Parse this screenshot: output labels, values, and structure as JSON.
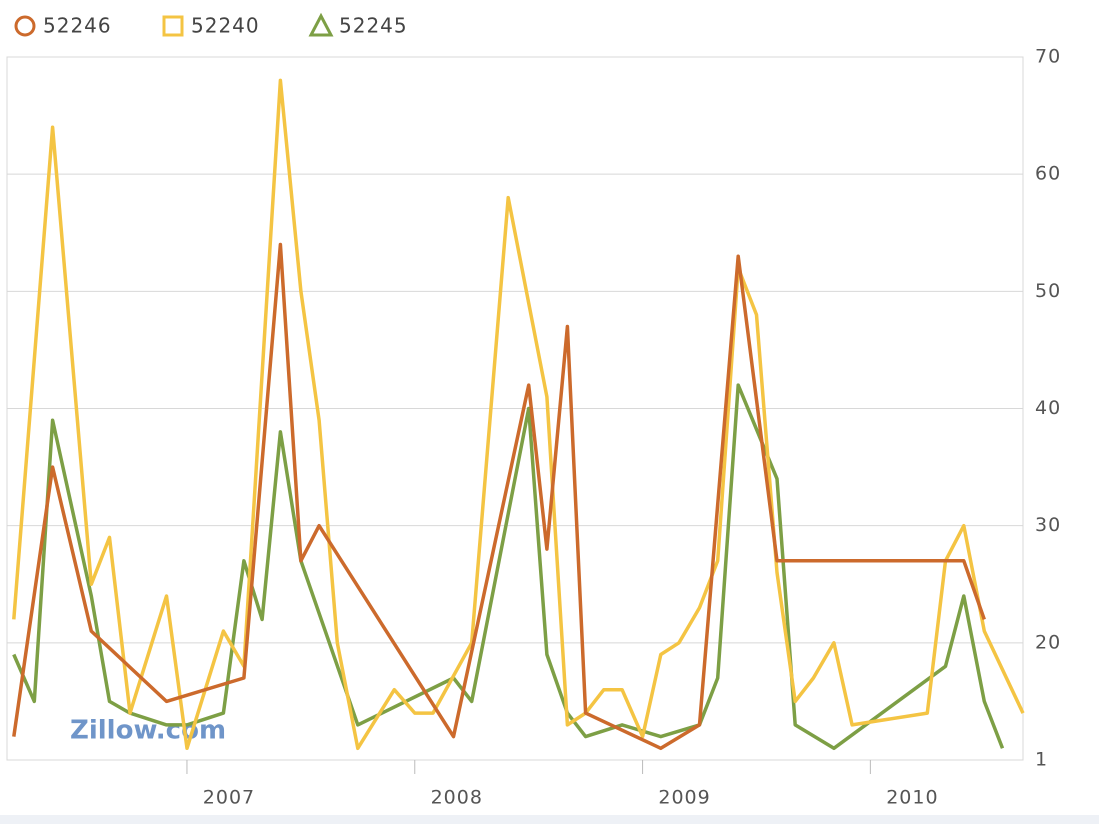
{
  "chart_data": {
    "type": "line",
    "watermark": "Zillow.com",
    "x_axis_position": "bottom",
    "y_axis_position": "right",
    "grid": true,
    "xlim": [
      2006.21,
      2010.67
    ],
    "xticks": [
      2007,
      2008,
      2009,
      2010
    ],
    "ylim": [
      10,
      70
    ],
    "yticks": [
      {
        "value": 10,
        "label": "1"
      },
      20,
      30,
      40,
      50,
      60,
      70
    ],
    "series": [
      {
        "name": "52246",
        "color": "#cc6a2c",
        "marker": "circle",
        "x": [
          2006.24,
          2006.41,
          2006.58,
          2006.91,
          2007.25,
          2007.41,
          2007.5,
          2007.58,
          2008.17,
          2008.5,
          2008.58,
          2008.67,
          2008.75,
          2009.08,
          2009.25,
          2009.42,
          2009.59,
          2010.41,
          2010.5
        ],
        "values": [
          12,
          35,
          21,
          15,
          17,
          54,
          27,
          30,
          12,
          42,
          28,
          47,
          14,
          11,
          13,
          53,
          27,
          27,
          22
        ]
      },
      {
        "name": "52240",
        "color": "#f4c443",
        "marker": "square",
        "x": [
          2006.24,
          2006.41,
          2006.58,
          2006.66,
          2006.75,
          2006.91,
          2007.0,
          2007.16,
          2007.25,
          2007.41,
          2007.5,
          2007.58,
          2007.66,
          2007.75,
          2007.91,
          2008.0,
          2008.08,
          2008.25,
          2008.41,
          2008.58,
          2008.67,
          2008.75,
          2008.83,
          2008.91,
          2009.0,
          2009.08,
          2009.16,
          2009.25,
          2009.33,
          2009.42,
          2009.5,
          2009.59,
          2009.67,
          2009.75,
          2009.84,
          2009.92,
          2010.25,
          2010.33,
          2010.41,
          2010.5,
          2010.67
        ],
        "values": [
          22,
          64,
          25,
          29,
          14,
          24,
          11,
          21,
          18,
          68,
          50,
          39,
          20,
          11,
          16,
          14,
          14,
          20,
          58,
          41,
          13,
          14,
          16,
          16,
          12,
          19,
          20,
          23,
          27,
          52,
          48,
          26,
          15,
          17,
          20,
          13,
          14,
          27,
          30,
          21,
          14
        ]
      },
      {
        "name": "52245",
        "color": "#7d9f45",
        "marker": "triangle",
        "x": [
          2006.24,
          2006.33,
          2006.41,
          2006.58,
          2006.66,
          2006.75,
          2006.91,
          2007.0,
          2007.16,
          2007.25,
          2007.33,
          2007.41,
          2007.5,
          2007.75,
          2008.17,
          2008.25,
          2008.5,
          2008.58,
          2008.67,
          2008.75,
          2008.91,
          2009.08,
          2009.25,
          2009.33,
          2009.42,
          2009.59,
          2009.67,
          2009.84,
          2010.33,
          2010.41,
          2010.5,
          2010.58
        ],
        "values": [
          19,
          15,
          39,
          24,
          15,
          14,
          13,
          13,
          14,
          27,
          22,
          38,
          27,
          13,
          17,
          15,
          40,
          19,
          14,
          12,
          13,
          12,
          13,
          17,
          42,
          34,
          13,
          11,
          18,
          24,
          15,
          11
        ]
      }
    ]
  }
}
